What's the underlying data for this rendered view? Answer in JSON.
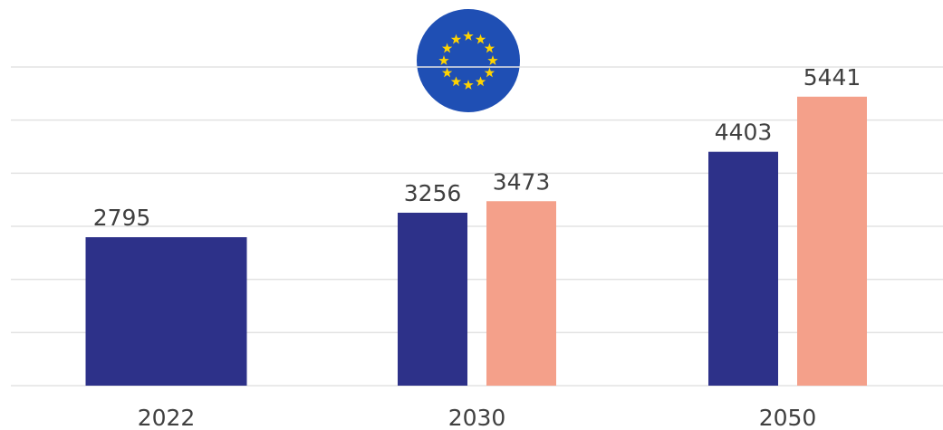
{
  "chart_data": {
    "type": "bar",
    "categories": [
      "2022",
      "2030",
      "2050"
    ],
    "series": [
      {
        "color": "#2d3189",
        "values": [
          2795,
          3256,
          4403
        ]
      },
      {
        "color": "#f4a08a",
        "values": [
          null,
          3473,
          5441
        ]
      }
    ],
    "ylim": [
      0,
      6000
    ],
    "yticks": [
      0,
      1000,
      2000,
      3000,
      4000,
      5000,
      6000
    ],
    "grid": true
  }
}
